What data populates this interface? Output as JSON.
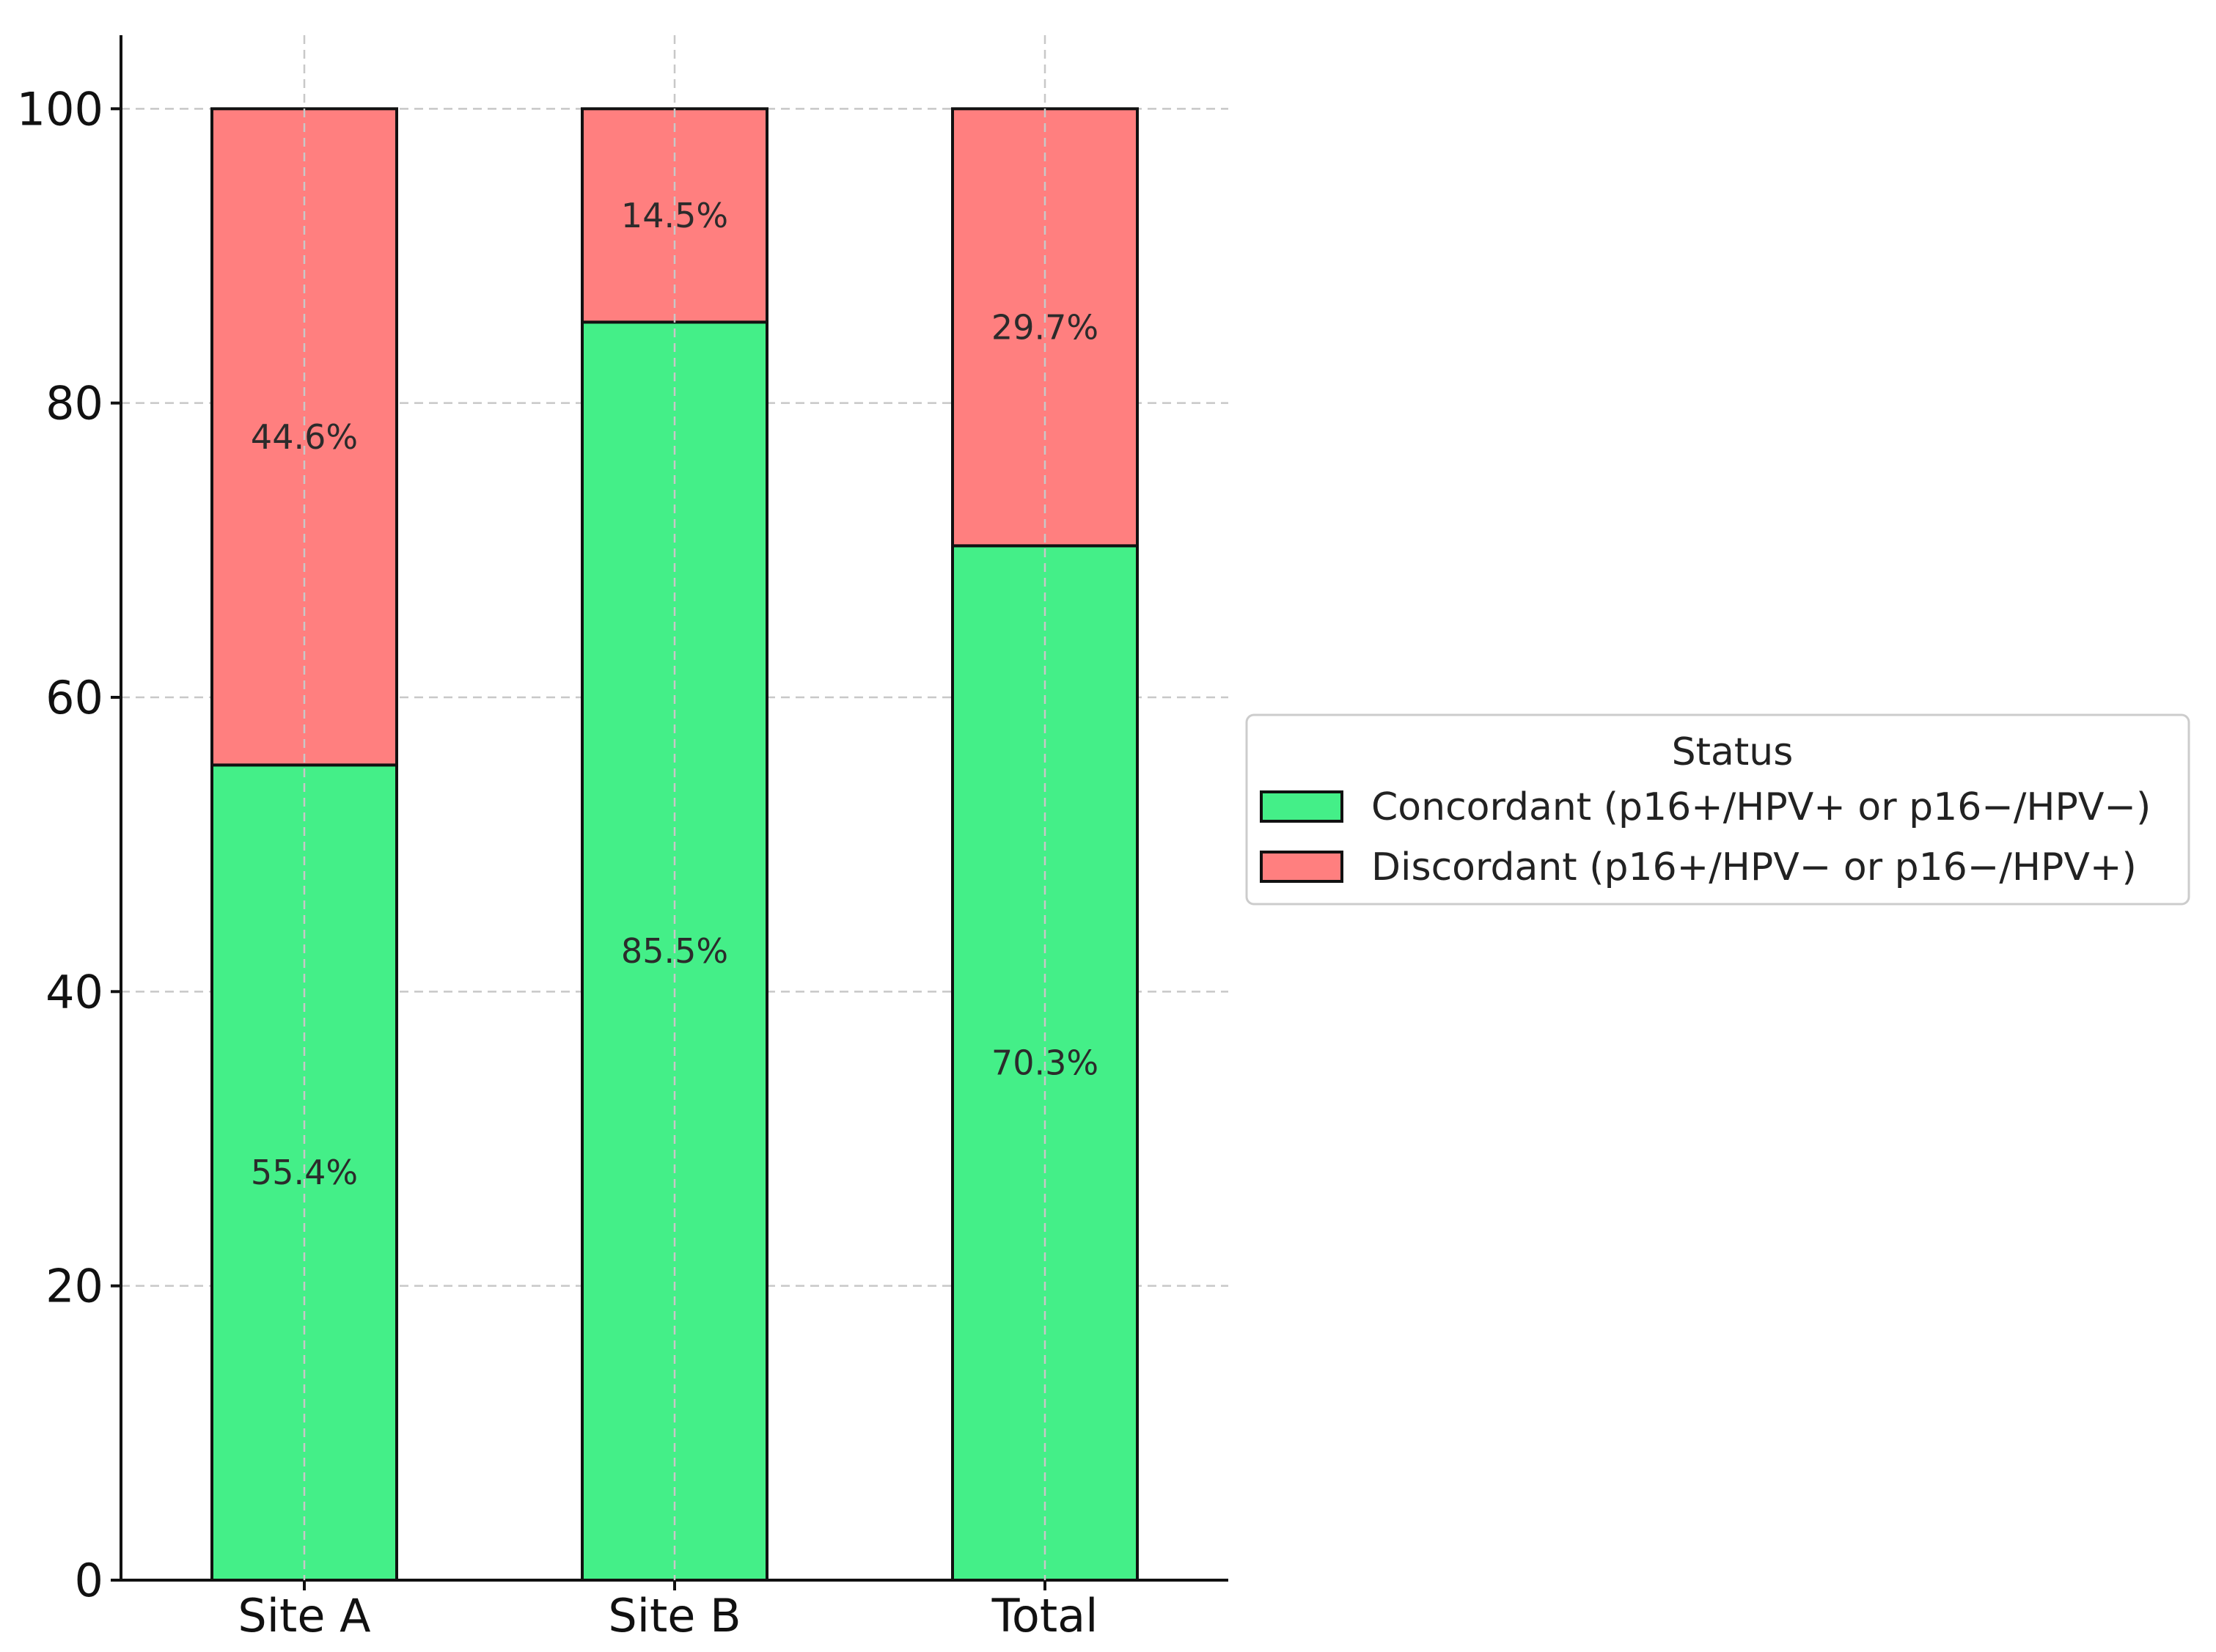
{
  "chart_data": {
    "type": "bar",
    "stacked": true,
    "categories": [
      "Site A",
      "Site B",
      "Total"
    ],
    "series": [
      {
        "name": "Concordant (p16+/HPV+ or p16−/HPV−)",
        "values": [
          55.4,
          85.5,
          70.3
        ],
        "labels": [
          "55.4%",
          "85.5%",
          "70.3%"
        ],
        "color": "#44ef88"
      },
      {
        "name": "Discordant (p16+/HPV− or p16−/HPV+)",
        "values": [
          44.6,
          14.5,
          29.7
        ],
        "labels": [
          "44.6%",
          "14.5%",
          "29.7%"
        ],
        "color": "#ff7f7f"
      }
    ],
    "ylim": [
      0,
      105
    ],
    "yticks": [
      0,
      20,
      40,
      60,
      80,
      100
    ],
    "ytick_labels": [
      "0",
      "20",
      "40",
      "60",
      "80",
      "100"
    ],
    "grid": true,
    "legend": {
      "title": "Status",
      "placement": "right"
    }
  }
}
